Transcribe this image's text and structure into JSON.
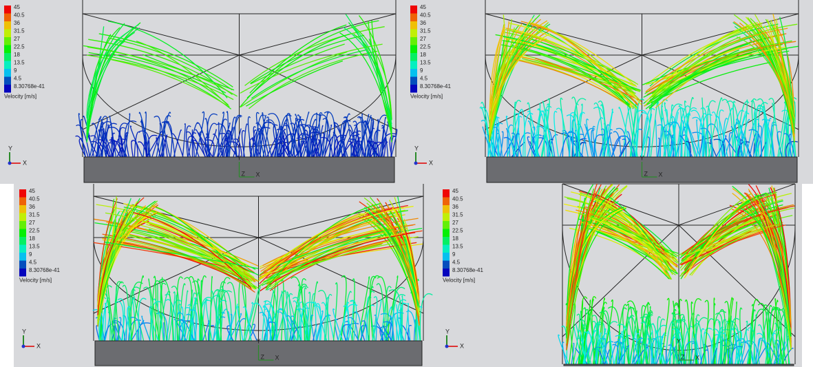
{
  "panels": [
    {
      "legend": {
        "labels": [
          "45",
          "40.5",
          "36",
          "31.5",
          "27",
          "22.5",
          "18",
          "13.5",
          "9",
          "4.5",
          "8.30768e-41"
        ],
        "title": "Velocity [m/s]"
      },
      "triad": [
        "Y",
        "X"
      ],
      "origin_axes": [
        "Y",
        "Z",
        "X"
      ]
    },
    {
      "legend": {
        "labels": [
          "45",
          "40.5",
          "36",
          "31.5",
          "27",
          "22.5",
          "18",
          "13.5",
          "9",
          "4.5",
          "8.30768e-41"
        ],
        "title": "Velocity [m/s]"
      },
      "triad": [
        "Y",
        "X"
      ],
      "origin_axes": [
        "Y",
        "Z",
        "X"
      ]
    },
    {
      "legend": {
        "labels": [
          "45",
          "40.5",
          "36",
          "31.5",
          "27",
          "22.5",
          "18",
          "13.5",
          "9",
          "4.5",
          "8.30768e-41"
        ],
        "title": "Velocity [m/s]"
      },
      "triad": [
        "Y",
        "X"
      ],
      "origin_axes": [
        "Y",
        "Z",
        "X"
      ]
    },
    {
      "legend": {
        "labels": [
          "45",
          "40.5",
          "36",
          "31.5",
          "27",
          "22.5",
          "18",
          "13.5",
          "9",
          "4.5",
          "8.30768e-41"
        ],
        "title": "Velocity [m/s]"
      },
      "triad": [
        "Y",
        "X"
      ],
      "origin_axes": [
        "Y",
        "Z",
        "X"
      ]
    }
  ]
}
